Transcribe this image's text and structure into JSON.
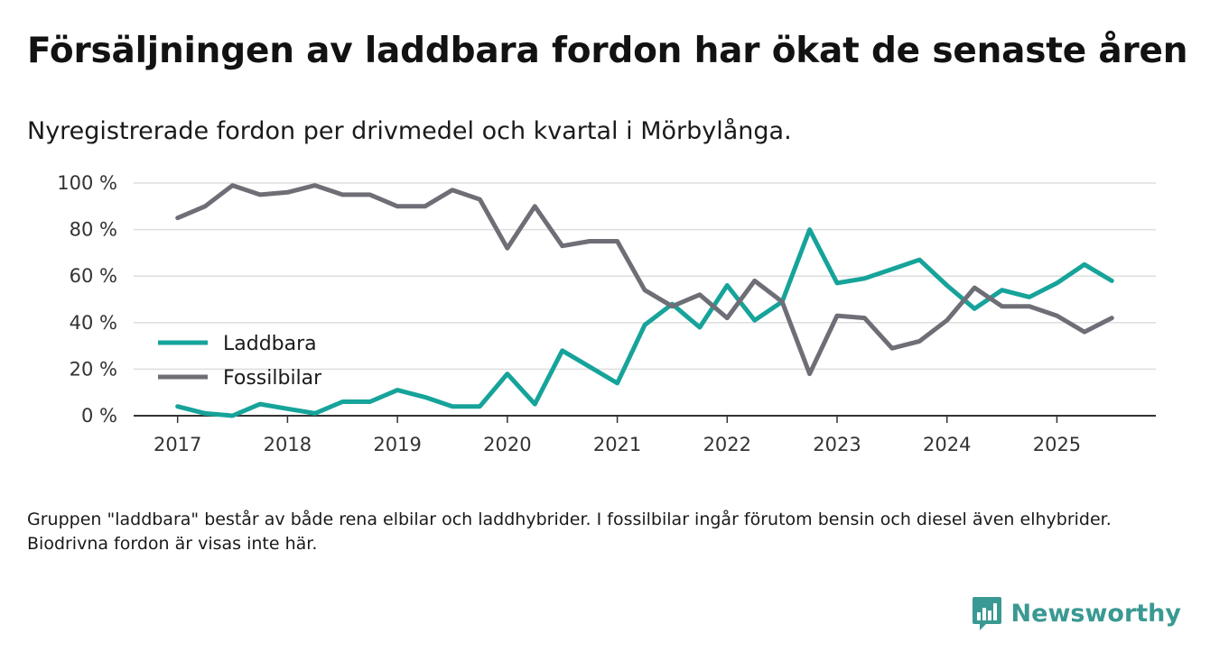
{
  "title": "Försäljningen av laddbara fordon har ökat de senaste åren",
  "subtitle": "Nyregistrerade fordon per drivmedel och kvartal i Mörbylånga.",
  "note": "Gruppen \"laddbara\" består av både rena elbilar och laddhybrider. I fossilbilar ingår förutom bensin och diesel även elhybrider. Biodrivna fordon är visas inte här.",
  "brand": {
    "name": "Newsworthy",
    "icon": "newsworthy-logo-icon",
    "color": "#3a9993"
  },
  "chart_data": {
    "type": "line",
    "title": "Nyregistrerade fordon per drivmedel och kvartal i Mörbylånga.",
    "xlabel": "",
    "ylabel": "",
    "x": [
      2017.0,
      2017.25,
      2017.5,
      2017.75,
      2018.0,
      2018.25,
      2018.5,
      2018.75,
      2019.0,
      2019.25,
      2019.5,
      2019.75,
      2020.0,
      2020.25,
      2020.5,
      2020.75,
      2021.0,
      2021.25,
      2021.5,
      2021.75,
      2022.0,
      2022.25,
      2022.5,
      2022.75,
      2023.0,
      2023.25,
      2023.5,
      2023.75,
      2024.0,
      2024.25,
      2024.5,
      2024.75,
      2025.0,
      2025.25,
      2025.5
    ],
    "xlim": [
      2016.6,
      2025.9
    ],
    "ylim": [
      0,
      100
    ],
    "x_ticks": [
      2017,
      2018,
      2019,
      2020,
      2021,
      2022,
      2023,
      2024,
      2025
    ],
    "x_tick_labels": [
      "2017",
      "2018",
      "2019",
      "2020",
      "2021",
      "2022",
      "2023",
      "2024",
      "2025"
    ],
    "y_ticks": [
      0,
      20,
      40,
      60,
      80,
      100
    ],
    "y_tick_labels": [
      "0 %",
      "20 %",
      "40 %",
      "60 %",
      "80 %",
      "100 %"
    ],
    "grid": true,
    "legend_position": "lower-left",
    "series": [
      {
        "name": "Laddbara",
        "color": "#16a39a",
        "values": [
          4,
          1,
          0,
          5,
          3,
          1,
          6,
          6,
          11,
          8,
          4,
          4,
          18,
          5,
          28,
          21,
          14,
          39,
          48,
          38,
          56,
          41,
          49,
          80,
          57,
          59,
          63,
          67,
          56,
          46,
          54,
          51,
          57,
          65,
          58
        ]
      },
      {
        "name": "Fossilbilar",
        "color": "#6e6e76",
        "values": [
          85,
          90,
          99,
          95,
          96,
          99,
          95,
          95,
          90,
          90,
          97,
          93,
          72,
          90,
          73,
          75,
          75,
          54,
          47,
          52,
          42,
          58,
          49,
          18,
          43,
          42,
          29,
          32,
          41,
          55,
          47,
          47,
          43,
          36,
          42
        ]
      }
    ]
  }
}
